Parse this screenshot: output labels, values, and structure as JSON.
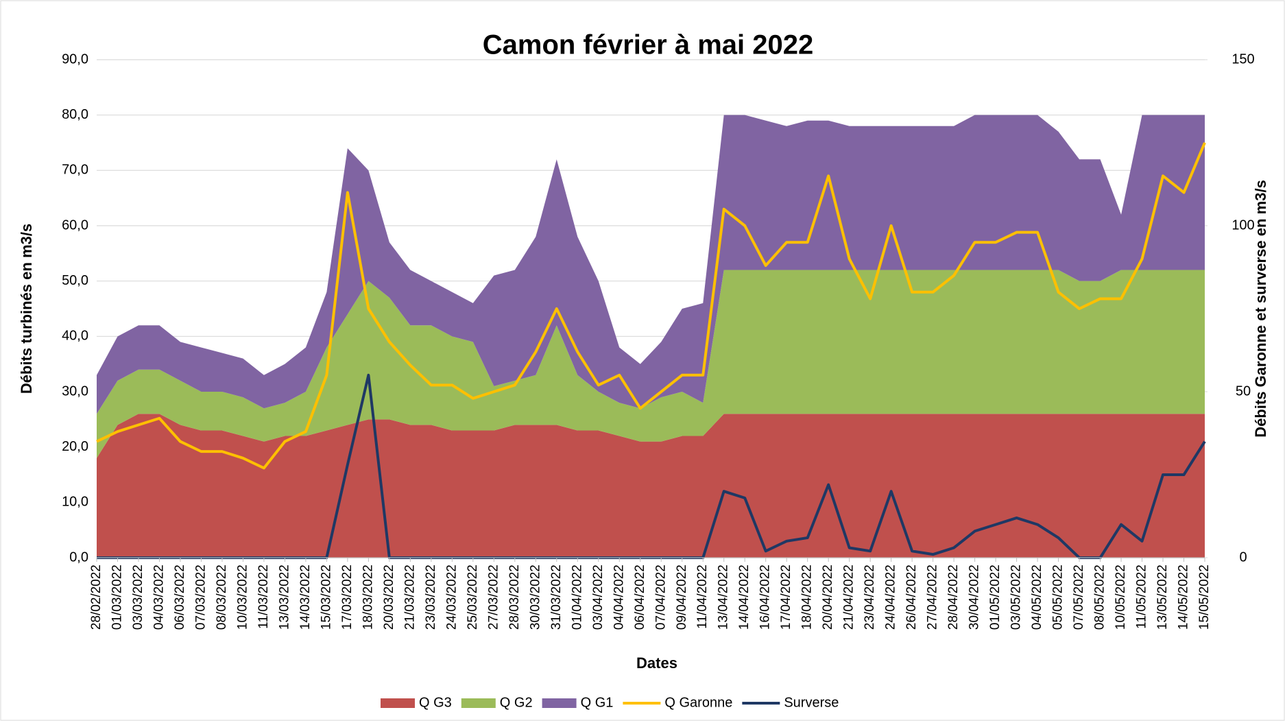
{
  "chart_data": {
    "type": "stacked-area-line",
    "title": "Camon février à mai 2022",
    "x_label": "Dates",
    "y_label": "Débits turbinés en m3/s",
    "y2_label": "Débits Garonne et surverse en m3/s",
    "categories": [
      "28/02/2022",
      "01/03/2022",
      "03/03/2022",
      "04/03/2022",
      "06/03/2022",
      "07/03/2022",
      "08/03/2022",
      "10/03/2022",
      "11/03/2022",
      "13/03/2022",
      "14/03/2022",
      "15/03/2022",
      "17/03/2022",
      "18/03/2022",
      "20/03/2022",
      "21/03/2022",
      "23/03/2022",
      "24/03/2022",
      "25/03/2022",
      "27/03/2022",
      "28/03/2022",
      "30/03/2022",
      "31/03/2022",
      "01/04/2022",
      "03/04/2022",
      "04/04/2022",
      "06/04/2022",
      "07/04/2022",
      "09/04/2022",
      "11/04/2022",
      "13/04/2022",
      "14/04/2022",
      "16/04/2022",
      "17/04/2022",
      "18/04/2022",
      "20/04/2022",
      "21/04/2022",
      "23/04/2022",
      "24/04/2022",
      "26/04/2022",
      "27/04/2022",
      "28/04/2022",
      "30/04/2022",
      "01/05/2022",
      "03/05/2022",
      "04/05/2022",
      "05/05/2022",
      "07/05/2022",
      "08/05/2022",
      "10/05/2022",
      "11/05/2022",
      "13/05/2022",
      "14/05/2022",
      "15/05/2022"
    ],
    "series": [
      {
        "name": "Q G3",
        "color": "#c0504d",
        "kind": "area",
        "values": [
          18,
          24,
          26,
          26,
          24,
          23,
          23,
          22,
          21,
          22,
          22,
          23,
          24,
          25,
          25,
          24,
          24,
          23,
          23,
          23,
          24,
          24,
          24,
          23,
          23,
          22,
          21,
          21,
          22,
          22,
          26,
          26,
          26,
          26,
          26,
          26,
          26,
          26,
          26,
          26,
          26,
          26,
          26,
          26,
          26,
          26,
          26,
          26,
          26,
          26,
          26,
          26,
          26,
          26
        ]
      },
      {
        "name": "Q G2",
        "color": "#9bbb59",
        "kind": "area",
        "values": [
          8,
          8,
          8,
          8,
          8,
          7,
          7,
          7,
          6,
          6,
          8,
          15,
          20,
          25,
          22,
          18,
          18,
          17,
          16,
          8,
          8,
          9,
          18,
          10,
          7,
          6,
          6,
          8,
          8,
          6,
          26,
          26,
          26,
          26,
          26,
          26,
          26,
          26,
          26,
          26,
          26,
          26,
          26,
          26,
          26,
          26,
          26,
          24,
          24,
          26,
          26,
          26,
          26,
          26
        ]
      },
      {
        "name": "Q G1",
        "color": "#8064a2",
        "kind": "area",
        "values": [
          7,
          8,
          8,
          8,
          7,
          8,
          7,
          7,
          6,
          7,
          8,
          10,
          30,
          20,
          10,
          10,
          8,
          8,
          7,
          20,
          20,
          25,
          30,
          25,
          20,
          10,
          8,
          10,
          15,
          18,
          28,
          28,
          27,
          26,
          27,
          27,
          26,
          26,
          26,
          26,
          26,
          26,
          28,
          28,
          28,
          28,
          25,
          22,
          22,
          10,
          28,
          28,
          28,
          28
        ]
      },
      {
        "name": "Q Garonne",
        "color": "#ffc000",
        "kind": "line",
        "axis": "y2",
        "values": [
          35,
          38,
          40,
          42,
          35,
          32,
          32,
          30,
          27,
          35,
          38,
          55,
          110,
          75,
          65,
          58,
          52,
          52,
          48,
          50,
          52,
          62,
          75,
          62,
          52,
          55,
          45,
          50,
          55,
          55,
          105,
          100,
          88,
          95,
          95,
          115,
          90,
          78,
          100,
          80,
          80,
          85,
          95,
          95,
          98,
          98,
          80,
          75,
          78,
          78,
          90,
          115,
          110,
          125
        ]
      },
      {
        "name": "Surverse",
        "color": "#1f3864",
        "kind": "line",
        "axis": "y2",
        "values": [
          0,
          0,
          0,
          0,
          0,
          0,
          0,
          0,
          0,
          0,
          0,
          0,
          28,
          55,
          0,
          0,
          0,
          0,
          0,
          0,
          0,
          0,
          0,
          0,
          0,
          0,
          0,
          0,
          0,
          0,
          20,
          18,
          2,
          5,
          6,
          22,
          3,
          2,
          20,
          2,
          1,
          3,
          8,
          10,
          12,
          10,
          6,
          0,
          0,
          10,
          5,
          25,
          25,
          35
        ]
      }
    ],
    "ylim": [
      0,
      90
    ],
    "yticks": [
      {
        "value": 0,
        "label": "0,0"
      },
      {
        "value": 10,
        "label": "10,0"
      },
      {
        "value": 20,
        "label": "20,0"
      },
      {
        "value": 30,
        "label": "30,0"
      },
      {
        "value": 40,
        "label": "40,0"
      },
      {
        "value": 50,
        "label": "50,0"
      },
      {
        "value": 60,
        "label": "60,0"
      },
      {
        "value": 70,
        "label": "70,0"
      },
      {
        "value": 80,
        "label": "80,0"
      },
      {
        "value": 90,
        "label": "90,0"
      }
    ],
    "y2lim": [
      0,
      150
    ],
    "y2ticks": [
      0,
      50,
      100,
      150
    ],
    "grid": true,
    "legend": "bottom"
  }
}
